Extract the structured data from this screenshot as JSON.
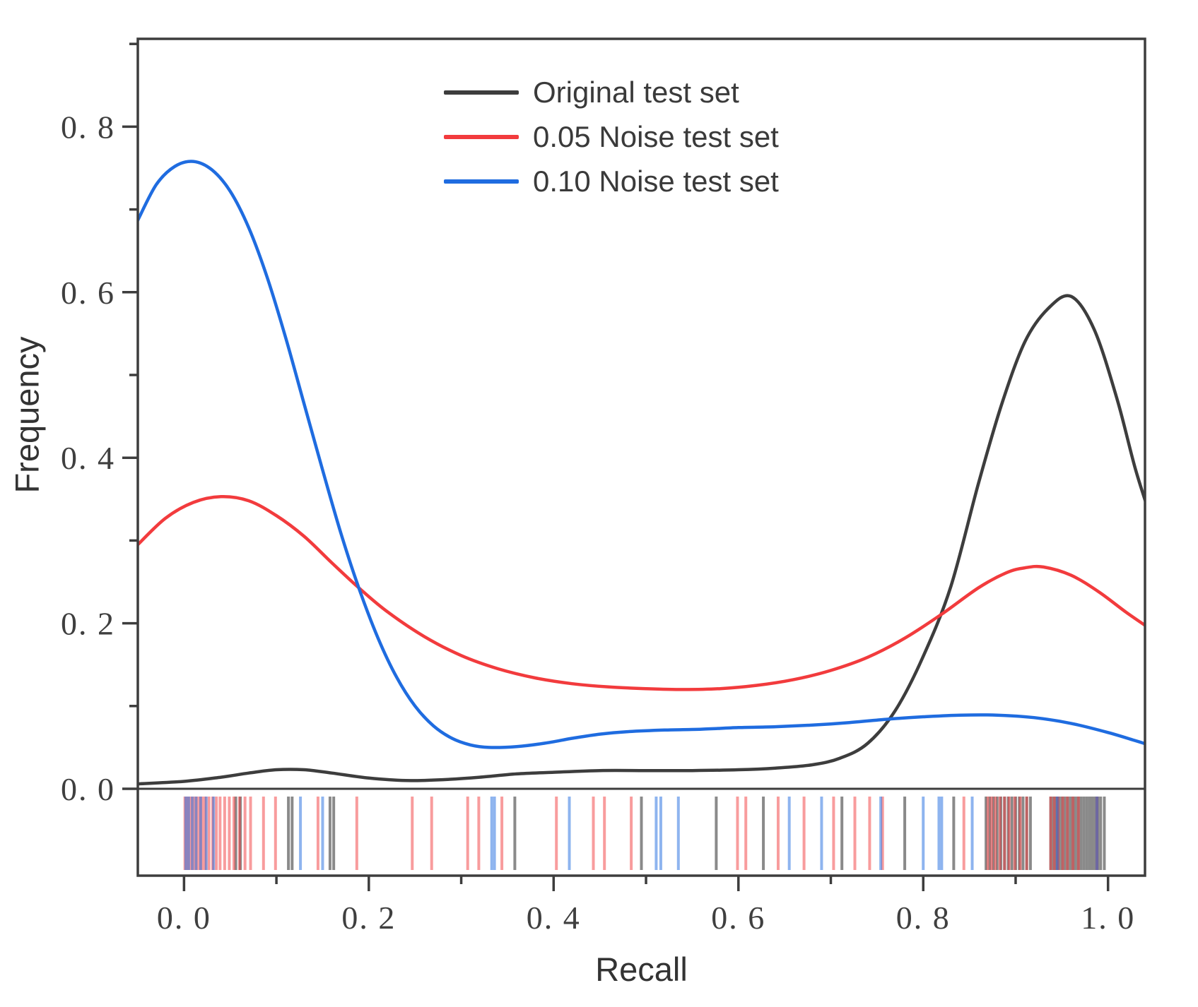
{
  "figure": {
    "title": "",
    "xlabel": "Recall",
    "ylabel": "Frequency",
    "background_color": "#ffffff",
    "axis_color": "#3d3d3d",
    "tick_label_color": "#3f3f3f"
  },
  "chart_data": {
    "type": "line",
    "subtype": "kde-density-with-rug",
    "title": "",
    "xlabel": "Recall",
    "ylabel": "Frequency",
    "xlim": [
      -0.05,
      1.04
    ],
    "ylim": [
      0,
      0.906
    ],
    "grid": false,
    "legend_position": "upper-left-inside",
    "x_major_ticks": [
      0.0,
      0.2,
      0.4,
      0.6,
      0.8,
      1.0
    ],
    "x_tick_labels": [
      "0. 0",
      "0. 2",
      "0. 4",
      "0. 6",
      "0. 8",
      "1. 0"
    ],
    "x_minor_ticks": [
      0.1,
      0.3,
      0.5,
      0.7,
      0.9
    ],
    "y_major_ticks": [
      0.0,
      0.2,
      0.4,
      0.6,
      0.8
    ],
    "y_tick_labels": [
      "0. 0",
      "0. 2",
      "0. 4",
      "0. 6",
      "0. 8"
    ],
    "y_minor_ticks": [
      0.1,
      0.3,
      0.5,
      0.7,
      0.9
    ],
    "baseline_y": 0.0,
    "series": [
      {
        "name": "Original test set",
        "color": "#3d3d3d",
        "rug_opacity": 0.6,
        "points": [
          [
            -0.05,
            0.006
          ],
          [
            0.0,
            0.009
          ],
          [
            0.04,
            0.014
          ],
          [
            0.07,
            0.019
          ],
          [
            0.1,
            0.023
          ],
          [
            0.13,
            0.023
          ],
          [
            0.16,
            0.019
          ],
          [
            0.2,
            0.013
          ],
          [
            0.24,
            0.01
          ],
          [
            0.28,
            0.011
          ],
          [
            0.32,
            0.014
          ],
          [
            0.36,
            0.018
          ],
          [
            0.4,
            0.02
          ],
          [
            0.45,
            0.022
          ],
          [
            0.5,
            0.022
          ],
          [
            0.55,
            0.022
          ],
          [
            0.6,
            0.023
          ],
          [
            0.64,
            0.025
          ],
          [
            0.68,
            0.029
          ],
          [
            0.71,
            0.037
          ],
          [
            0.74,
            0.055
          ],
          [
            0.77,
            0.095
          ],
          [
            0.8,
            0.16
          ],
          [
            0.83,
            0.245
          ],
          [
            0.86,
            0.37
          ],
          [
            0.885,
            0.465
          ],
          [
            0.91,
            0.54
          ],
          [
            0.935,
            0.58
          ],
          [
            0.96,
            0.595
          ],
          [
            0.985,
            0.555
          ],
          [
            1.01,
            0.47
          ],
          [
            1.03,
            0.385
          ],
          [
            1.05,
            0.315
          ]
        ],
        "rug_x": [
          0.056,
          0.061,
          0.113,
          0.117,
          0.158,
          0.162,
          0.358,
          0.495,
          0.576,
          0.627,
          0.712,
          0.78,
          0.833,
          0.868,
          0.872,
          0.876,
          0.88,
          0.884,
          0.888,
          0.892,
          0.896,
          0.9,
          0.904,
          0.908,
          0.912,
          0.916,
          0.938,
          0.941,
          0.944,
          0.947,
          0.95,
          0.953,
          0.956,
          0.959,
          0.962,
          0.965,
          0.968,
          0.971,
          0.974,
          0.977,
          0.98,
          0.983,
          0.986,
          0.989,
          0.992,
          0.996
        ]
      },
      {
        "name": "0.05 Noise test set",
        "color": "#f23b3d",
        "rug_opacity": 0.5,
        "points": [
          [
            -0.05,
            0.295
          ],
          [
            -0.02,
            0.327
          ],
          [
            0.01,
            0.346
          ],
          [
            0.04,
            0.353
          ],
          [
            0.07,
            0.348
          ],
          [
            0.1,
            0.33
          ],
          [
            0.13,
            0.305
          ],
          [
            0.16,
            0.273
          ],
          [
            0.19,
            0.242
          ],
          [
            0.22,
            0.214
          ],
          [
            0.26,
            0.184
          ],
          [
            0.3,
            0.161
          ],
          [
            0.34,
            0.145
          ],
          [
            0.38,
            0.134
          ],
          [
            0.42,
            0.127
          ],
          [
            0.46,
            0.123
          ],
          [
            0.5,
            0.121
          ],
          [
            0.54,
            0.12
          ],
          [
            0.58,
            0.121
          ],
          [
            0.62,
            0.125
          ],
          [
            0.66,
            0.132
          ],
          [
            0.7,
            0.143
          ],
          [
            0.74,
            0.159
          ],
          [
            0.78,
            0.182
          ],
          [
            0.82,
            0.211
          ],
          [
            0.86,
            0.243
          ],
          [
            0.89,
            0.261
          ],
          [
            0.91,
            0.267
          ],
          [
            0.93,
            0.268
          ],
          [
            0.96,
            0.258
          ],
          [
            0.99,
            0.238
          ],
          [
            1.02,
            0.213
          ],
          [
            1.05,
            0.19
          ]
        ],
        "rug_x": [
          0.001,
          0.003,
          0.005,
          0.008,
          0.011,
          0.014,
          0.017,
          0.02,
          0.023,
          0.027,
          0.031,
          0.035,
          0.039,
          0.044,
          0.049,
          0.054,
          0.06,
          0.066,
          0.072,
          0.086,
          0.099,
          0.145,
          0.187,
          0.247,
          0.268,
          0.307,
          0.319,
          0.344,
          0.403,
          0.443,
          0.455,
          0.484,
          0.599,
          0.608,
          0.643,
          0.671,
          0.703,
          0.726,
          0.742,
          0.756,
          0.844,
          0.87,
          0.874,
          0.878,
          0.883,
          0.888,
          0.893,
          0.899,
          0.905,
          0.912,
          0.938,
          0.942,
          0.946,
          0.951,
          0.956,
          0.962,
          0.968,
          0.988
        ]
      },
      {
        "name": "0.10 Noise test set",
        "color": "#1f6ce0",
        "rug_opacity": 0.5,
        "points": [
          [
            -0.05,
            0.687
          ],
          [
            -0.03,
            0.73
          ],
          [
            -0.01,
            0.752
          ],
          [
            0.01,
            0.758
          ],
          [
            0.03,
            0.748
          ],
          [
            0.05,
            0.722
          ],
          [
            0.07,
            0.678
          ],
          [
            0.09,
            0.618
          ],
          [
            0.11,
            0.545
          ],
          [
            0.13,
            0.465
          ],
          [
            0.15,
            0.385
          ],
          [
            0.17,
            0.308
          ],
          [
            0.19,
            0.24
          ],
          [
            0.21,
            0.182
          ],
          [
            0.23,
            0.135
          ],
          [
            0.25,
            0.1
          ],
          [
            0.27,
            0.076
          ],
          [
            0.29,
            0.061
          ],
          [
            0.31,
            0.053
          ],
          [
            0.33,
            0.05
          ],
          [
            0.36,
            0.051
          ],
          [
            0.39,
            0.055
          ],
          [
            0.42,
            0.061
          ],
          [
            0.45,
            0.066
          ],
          [
            0.48,
            0.069
          ],
          [
            0.52,
            0.071
          ],
          [
            0.56,
            0.072
          ],
          [
            0.6,
            0.074
          ],
          [
            0.64,
            0.075
          ],
          [
            0.68,
            0.077
          ],
          [
            0.72,
            0.08
          ],
          [
            0.76,
            0.084
          ],
          [
            0.8,
            0.087
          ],
          [
            0.84,
            0.089
          ],
          [
            0.88,
            0.089
          ],
          [
            0.92,
            0.086
          ],
          [
            0.96,
            0.079
          ],
          [
            1.0,
            0.068
          ],
          [
            1.03,
            0.058
          ],
          [
            1.05,
            0.051
          ]
        ],
        "rug_x": [
          0.002,
          0.005,
          0.009,
          0.013,
          0.018,
          0.024,
          0.032,
          0.126,
          0.15,
          0.333,
          0.336,
          0.417,
          0.511,
          0.516,
          0.535,
          0.655,
          0.69,
          0.754,
          0.8,
          0.817,
          0.82,
          0.853,
          0.945,
          0.988
        ]
      }
    ]
  }
}
